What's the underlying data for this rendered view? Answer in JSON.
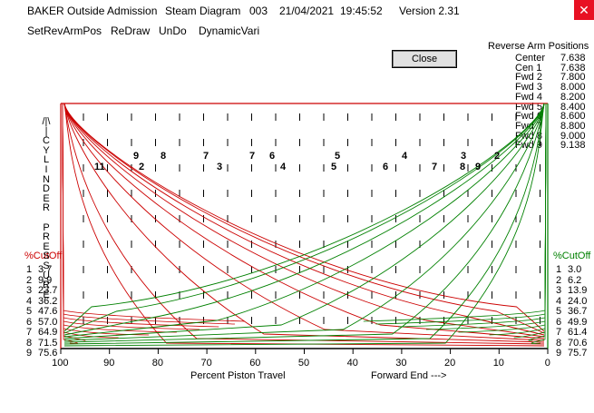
{
  "window": {
    "app": "BAKER Outside Admission",
    "diagram": "Steam Diagram",
    "id": "003",
    "date": "21/04/2021",
    "time": "19:45:52",
    "version": "Version 2.31"
  },
  "menu": [
    "SetRevArmPos",
    "ReDraw",
    "UnDo",
    "DynamicVari"
  ],
  "close_button": "Close",
  "reverse_arm": {
    "title": "Reverse Arm Positions",
    "rows": [
      {
        "label": "Center",
        "value": "7.638"
      },
      {
        "label": "Cen 1",
        "value": "7.638"
      },
      {
        "label": "Fwd 2",
        "value": "7.800"
      },
      {
        "label": "Fwd 3",
        "value": "8.000"
      },
      {
        "label": "Fwd 4",
        "value": "8.200"
      },
      {
        "label": "Fwd 5",
        "value": "8.400"
      },
      {
        "label": "Fwd 6",
        "value": "8.600"
      },
      {
        "label": "Fwd 7",
        "value": "8.800"
      },
      {
        "label": "Fwd 8",
        "value": "9.000"
      },
      {
        "label": "Fwd 9",
        "value": "9.138"
      }
    ]
  },
  "left_cutoff": {
    "title": "%CutOff",
    "rows": [
      {
        "n": "1",
        "v": "3.7"
      },
      {
        "n": "2",
        "v": "9.9"
      },
      {
        "n": "3",
        "v": "23.7"
      },
      {
        "n": "4",
        "v": "36.2"
      },
      {
        "n": "5",
        "v": "47.6"
      },
      {
        "n": "6",
        "v": "57.0"
      },
      {
        "n": "7",
        "v": "64.9"
      },
      {
        "n": "8",
        "v": "71.5"
      },
      {
        "n": "9",
        "v": "75.6"
      }
    ]
  },
  "right_cutoff": {
    "title": "%CutOff",
    "rows": [
      {
        "n": "1",
        "v": "3.0"
      },
      {
        "n": "2",
        "v": "6.2"
      },
      {
        "n": "3",
        "v": "13.9"
      },
      {
        "n": "4",
        "v": "24.0"
      },
      {
        "n": "5",
        "v": "36.7"
      },
      {
        "n": "6",
        "v": "49.9"
      },
      {
        "n": "7",
        "v": "61.4"
      },
      {
        "n": "8",
        "v": "70.6"
      },
      {
        "n": "9",
        "v": "75.7"
      }
    ]
  },
  "y_axis_label": [
    "/|\\",
    "|",
    "C",
    "Y",
    "L",
    "I",
    "N",
    "D",
    "E",
    "R",
    " ",
    "P",
    "R",
    "E",
    "S",
    "S",
    "U",
    "R",
    "E"
  ],
  "chart_data": {
    "type": "line",
    "xlabel": "Percent Piston Travel",
    "xlabel_right": "Forward End --->",
    "x_ticks": [
      "100",
      "90",
      "80",
      "70",
      "60",
      "50",
      "40",
      "30",
      "20",
      "10",
      "0"
    ],
    "x_reversed": true,
    "xlim": [
      100,
      0
    ],
    "grid": "dashed vertical markers",
    "series": [
      {
        "color": "#cc0000",
        "cutoff_pct": [
          3.7,
          9.9,
          23.7,
          36.2,
          47.6,
          57.0,
          64.9,
          71.5,
          75.6
        ]
      },
      {
        "color": "#008000",
        "cutoff_pct": [
          3.0,
          6.2,
          13.9,
          24.0,
          36.7,
          49.9,
          61.4,
          70.6,
          75.7
        ]
      }
    ],
    "curve_labels_top": [
      "9",
      "8",
      "7",
      "7",
      "6",
      "5",
      "4",
      "3",
      "2"
    ],
    "curve_labels_bottom": [
      "11",
      "2",
      "3",
      "4",
      "5",
      "6",
      "7",
      "8",
      "9"
    ]
  },
  "colors": {
    "red": "#cc0000",
    "green": "#008000",
    "close_x": "#e81123"
  }
}
